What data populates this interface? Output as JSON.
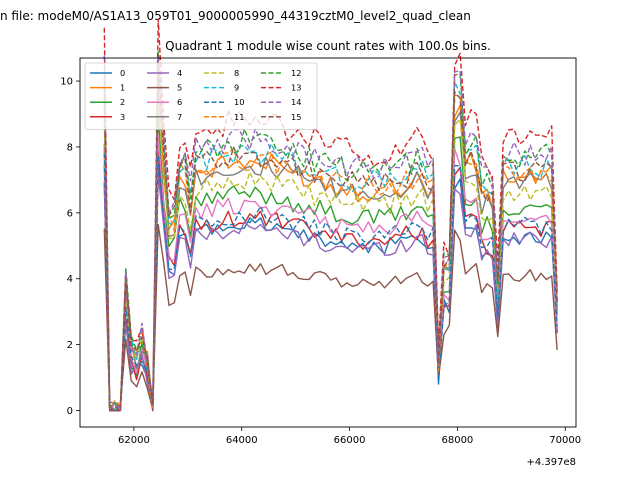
{
  "figure": {
    "suptitle": "n file: modeM0/AS1A13_059T01_9000005990_44319cztM0_level2_quad_clean",
    "offset_label": "+4.397e8"
  },
  "colors": {
    "palette": [
      "#1f77b4",
      "#ff7f0e",
      "#2ca02c",
      "#d62728",
      "#9467bd",
      "#8c564b",
      "#e377c2",
      "#7f7f7f",
      "#bcbd22",
      "#17becf"
    ]
  },
  "chart_data": {
    "type": "line",
    "title": "Quadrant 1 module wise count rates with 100.0s bins.",
    "xlabel": "",
    "ylabel": "",
    "x_offset": 439700000,
    "xlim": [
      61000,
      70200
    ],
    "ylim": [
      -0.5,
      10.7
    ],
    "xticks": [
      62000,
      64000,
      66000,
      68000,
      70000
    ],
    "xtick_labels": [
      "62000",
      "64000",
      "66000",
      "68000",
      "70000"
    ],
    "yticks": [
      0,
      2,
      4,
      6,
      8,
      10
    ],
    "ytick_labels": [
      "0",
      "2",
      "4",
      "6",
      "8",
      "10"
    ],
    "grid": false,
    "legend": {
      "placement": "upper-left",
      "columns": 4
    },
    "x_range": [
      61450,
      69850
    ],
    "bin_seconds": 100,
    "series": [
      {
        "name": "0",
        "style": "solid",
        "level": 5.3
      },
      {
        "name": "1",
        "style": "solid",
        "level": 7.1
      },
      {
        "name": "2",
        "style": "solid",
        "level": 6.2
      },
      {
        "name": "3",
        "style": "solid",
        "level": 5.5
      },
      {
        "name": "4",
        "style": "solid",
        "level": 5.2
      },
      {
        "name": "5",
        "style": "solid",
        "level": 4.1
      },
      {
        "name": "6",
        "style": "solid",
        "level": 5.9
      },
      {
        "name": "7",
        "style": "solid",
        "level": 7.0
      },
      {
        "name": "8",
        "style": "dashed",
        "level": 6.6
      },
      {
        "name": "9",
        "style": "dashed",
        "level": 7.4
      },
      {
        "name": "10",
        "style": "dashed",
        "level": 5.6
      },
      {
        "name": "11",
        "style": "dashed",
        "level": 7.2
      },
      {
        "name": "12",
        "style": "dashed",
        "level": 7.7
      },
      {
        "name": "13",
        "style": "dashed",
        "level": 8.3
      },
      {
        "name": "14",
        "style": "dashed",
        "level": 7.8
      },
      {
        "name": "15",
        "style": "dashed",
        "level": 7.3
      }
    ]
  }
}
